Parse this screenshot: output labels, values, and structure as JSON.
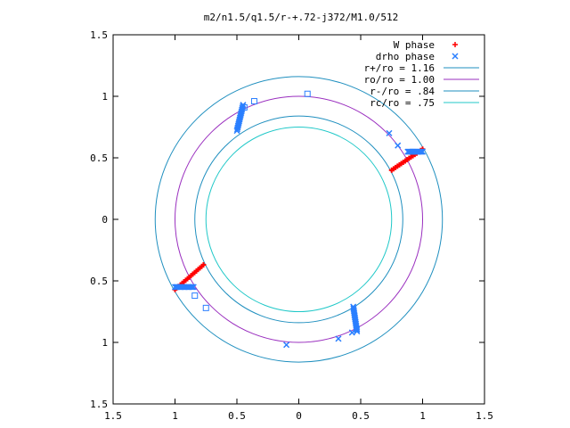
{
  "chart_data": {
    "type": "scatter",
    "title": "m2/n1.5/q1.5/r-+.72-j372/M1.0/512",
    "xlabel": "",
    "ylabel": "",
    "xlim": [
      -1.5,
      1.5
    ],
    "ylim": [
      -1.5,
      1.5
    ],
    "x_ticks": [
      -1.5,
      -1,
      -0.5,
      0,
      0.5,
      1,
      1.5
    ],
    "x_tick_labels": [
      "1.5",
      "1",
      "0.5",
      "0",
      "0.5",
      "1",
      "1.5"
    ],
    "y_ticks": [
      1.5,
      1,
      0.5,
      0,
      -0.5,
      -1,
      -1.5
    ],
    "y_tick_labels": [
      "1.5",
      "1",
      "0.5",
      "0",
      "0.5",
      "1",
      "1.5"
    ],
    "grid": false,
    "legend_position": "top-right",
    "circles": [
      {
        "name": "r+/ro = 1.16",
        "radius": 1.16,
        "color": "#1f8fbf"
      },
      {
        "name": "ro/ro = 1.00",
        "radius": 1.0,
        "color": "#9a2fbf"
      },
      {
        "name": "r-/ro = .84",
        "radius": 0.84,
        "color": "#1f8fbf"
      },
      {
        "name": "rc/ro = .75",
        "radius": 0.75,
        "color": "#20c8c8"
      }
    ],
    "series": [
      {
        "name": "W phase",
        "marker": "plus",
        "color": "#ff0000",
        "segments": [
          {
            "x_start": 0.75,
            "y_start": 0.4,
            "x_end": 1.0,
            "y_end": 0.57
          },
          {
            "x_start": -1.0,
            "y_start": -0.57,
            "x_end": -0.77,
            "y_end": -0.37
          }
        ]
      },
      {
        "name": "drho phase",
        "marker": "cross",
        "color": "#2a7fff",
        "segments": [
          {
            "x_start": 0.88,
            "y_start": 0.55,
            "x_end": 1.0,
            "y_end": 0.55
          },
          {
            "x_start": -1.0,
            "y_start": -0.55,
            "x_end": -0.85,
            "y_end": -0.55
          },
          {
            "x_start": -0.5,
            "y_start": 0.72,
            "x_end": -0.45,
            "y_end": 0.93
          },
          {
            "x_start": 0.44,
            "y_start": -0.71,
            "x_end": 0.47,
            "y_end": -0.91
          }
        ],
        "points": [
          [
            0.73,
            0.7
          ],
          [
            0.8,
            0.6
          ],
          [
            -0.1,
            -1.02
          ],
          [
            0.32,
            -0.97
          ],
          [
            0.43,
            -0.92
          ],
          [
            0.47,
            -0.89
          ]
        ]
      },
      {
        "name": "open squares",
        "marker": "square",
        "color": "#2a7fff",
        "points": [
          [
            0.07,
            1.02
          ],
          [
            -0.36,
            0.96
          ],
          [
            -0.44,
            0.91
          ],
          [
            -0.84,
            -0.62
          ],
          [
            -0.75,
            -0.72
          ]
        ]
      }
    ]
  }
}
